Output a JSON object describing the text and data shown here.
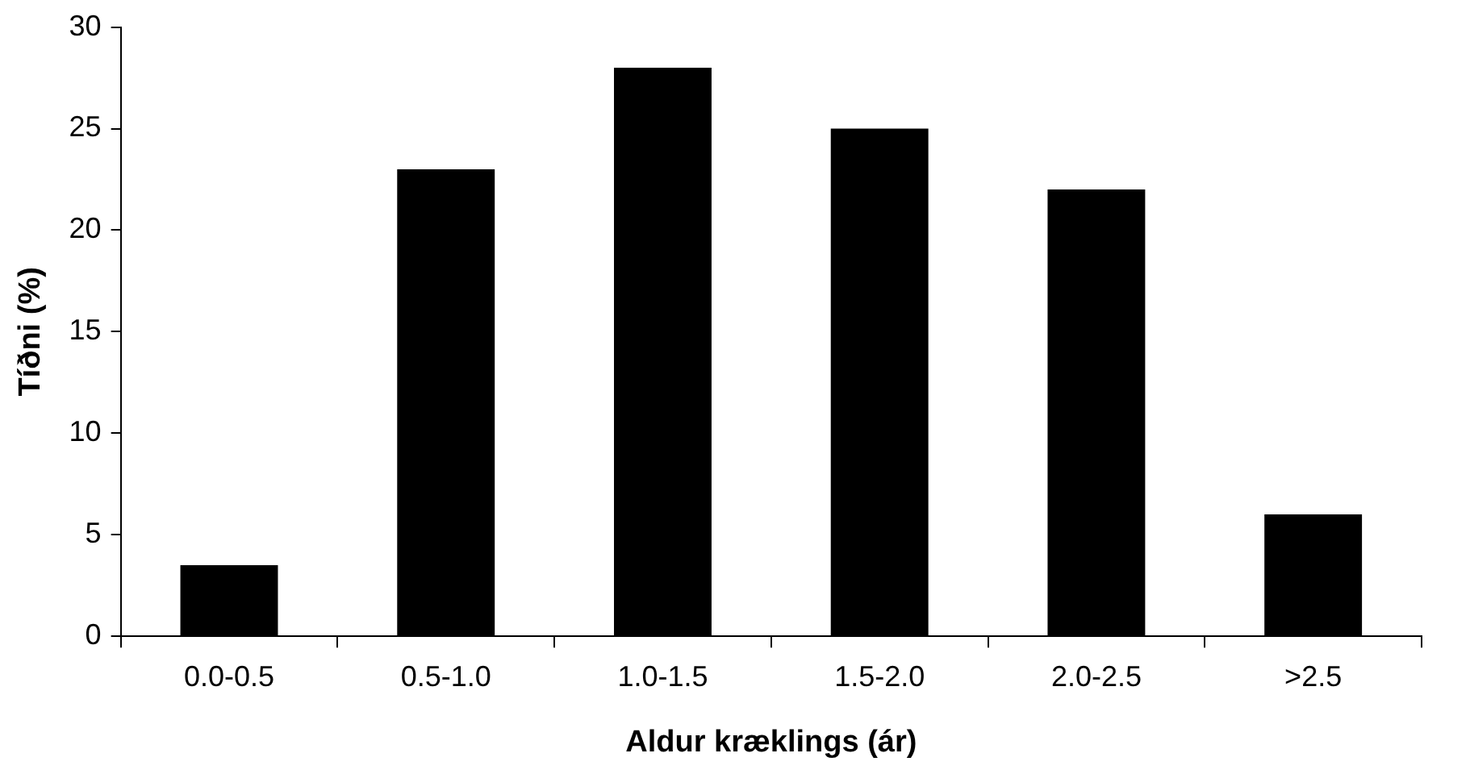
{
  "chart_data": {
    "type": "bar",
    "xlabel": "Aldur kræklings (ár)",
    "ylabel": "Tíðni (%)",
    "categories": [
      "0.0-0.5",
      "0.5-1.0",
      "1.0-1.5",
      "1.5-2.0",
      "2.0-2.5",
      ">2.5"
    ],
    "values": [
      3.5,
      23,
      28,
      25,
      22,
      6
    ],
    "color": "#000000",
    "ylim": [
      0,
      30
    ],
    "yticks": [
      0,
      5,
      10,
      15,
      20,
      25,
      30
    ],
    "grid": false,
    "legend": false
  }
}
